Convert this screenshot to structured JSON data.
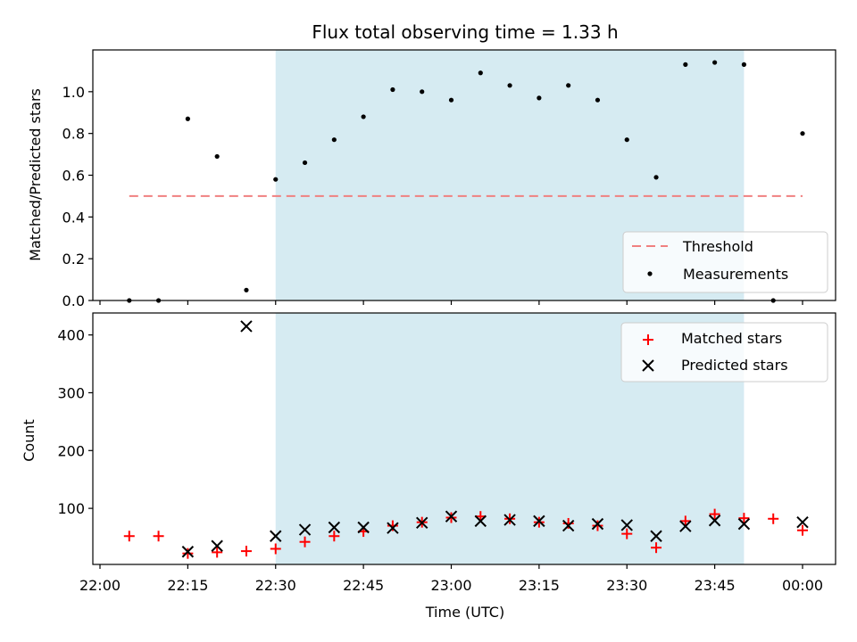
{
  "chart_data": [
    {
      "type": "scatter",
      "title": "Flux total observing time = 1.33 h",
      "xlabel": "",
      "ylabel": "Matched/Predicted stars",
      "ylim": [
        0,
        1.2
      ],
      "yticks": [
        "0.0",
        "0.2",
        "0.4",
        "0.6",
        "0.8",
        "1.0"
      ],
      "x_time_range": [
        "22:00",
        "00:00"
      ],
      "shaded_interval": [
        "22:30",
        "23:50"
      ],
      "shade_color": "#add8e6",
      "threshold": {
        "name": "Threshold",
        "value": 0.5,
        "x_start": "22:05",
        "x_end": "00:00",
        "color": "#f08080"
      },
      "series": [
        {
          "name": "Measurements",
          "marker": "dot",
          "color": "#000000",
          "x": [
            "22:05",
            "22:10",
            "22:15",
            "22:20",
            "22:25",
            "22:30",
            "22:35",
            "22:40",
            "22:45",
            "22:50",
            "22:55",
            "23:00",
            "23:05",
            "23:10",
            "23:15",
            "23:20",
            "23:25",
            "23:30",
            "23:35",
            "23:40",
            "23:45",
            "23:50",
            "23:55",
            "00:00"
          ],
          "values": [
            0.0,
            0.0,
            0.87,
            0.69,
            0.05,
            0.58,
            0.66,
            0.77,
            0.88,
            1.01,
            1.0,
            0.96,
            1.09,
            1.03,
            0.97,
            1.03,
            0.96,
            0.77,
            0.59,
            1.13,
            1.14,
            1.13,
            0.0,
            0.8
          ]
        }
      ],
      "legend": {
        "position": "lower right",
        "entries": [
          "Threshold",
          "Measurements"
        ]
      }
    },
    {
      "type": "scatter",
      "title": "",
      "xlabel": "Time (UTC)",
      "ylabel": "Count",
      "ylim": [
        3,
        438
      ],
      "yticks": [
        "100",
        "200",
        "300",
        "400"
      ],
      "xticks": [
        "22:00",
        "22:15",
        "22:30",
        "22:45",
        "23:00",
        "23:15",
        "23:30",
        "23:45",
        "00:00"
      ],
      "x_time_range": [
        "22:00",
        "00:00"
      ],
      "shaded_interval": [
        "22:30",
        "23:50"
      ],
      "shade_color": "#add8e6",
      "series": [
        {
          "name": "Matched stars",
          "marker": "plus",
          "color": "#ff0000",
          "x": [
            "22:05",
            "22:10",
            "22:15",
            "22:20",
            "22:25",
            "22:30",
            "22:35",
            "22:40",
            "22:45",
            "22:50",
            "22:55",
            "23:00",
            "23:05",
            "23:10",
            "23:15",
            "23:20",
            "23:25",
            "23:30",
            "23:35",
            "23:40",
            "23:45",
            "23:50",
            "23:55",
            "00:00"
          ],
          "values": [
            52,
            52,
            22,
            24,
            26,
            30,
            42,
            52,
            60,
            70,
            76,
            84,
            86,
            82,
            76,
            74,
            70,
            56,
            32,
            78,
            90,
            83,
            82,
            62
          ]
        },
        {
          "name": "Predicted stars",
          "marker": "x",
          "color": "#000000",
          "x": [
            "22:15",
            "22:20",
            "22:25",
            "22:30",
            "22:35",
            "22:40",
            "22:45",
            "22:50",
            "22:55",
            "23:00",
            "23:05",
            "23:10",
            "23:15",
            "23:20",
            "23:25",
            "23:30",
            "23:35",
            "23:40",
            "23:45",
            "23:50",
            "00:00"
          ],
          "values": [
            25,
            35,
            415,
            52,
            63,
            67,
            67,
            66,
            75,
            86,
            78,
            80,
            78,
            70,
            73,
            71,
            52,
            69,
            79,
            73,
            76
          ]
        }
      ],
      "legend": {
        "position": "upper right",
        "entries": [
          "Matched stars",
          "Predicted stars"
        ]
      }
    }
  ]
}
